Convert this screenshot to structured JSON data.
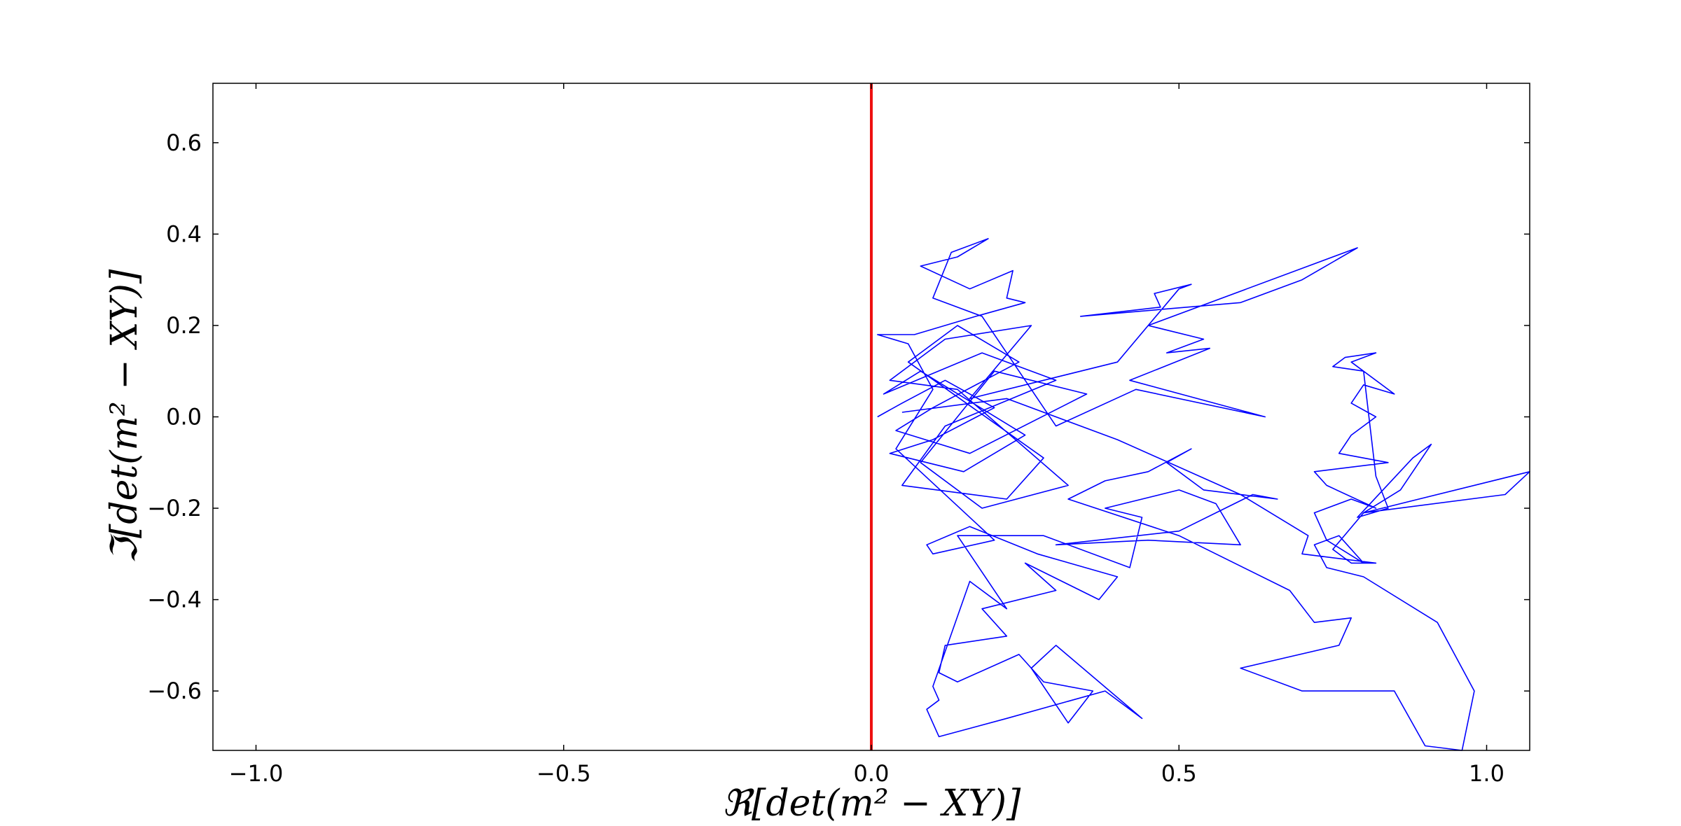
{
  "chart_data": {
    "type": "line",
    "xlabel": "ℜ[det(m² − XY)]",
    "ylabel": "ℑ[det(m² − XY)]",
    "xlim": [
      -1.07,
      1.07
    ],
    "ylim": [
      -0.73,
      0.73
    ],
    "xticks": [
      -1.0,
      -0.5,
      0.0,
      0.5,
      1.0
    ],
    "xtick_labels": [
      "−1.0",
      "−0.5",
      "0.0",
      "0.5",
      "1.0"
    ],
    "yticks": [
      -0.6,
      -0.4,
      -0.2,
      0.0,
      0.2,
      0.4,
      0.6
    ],
    "ytick_labels": [
      "−0.6",
      "−0.4",
      "−0.2",
      "0.0",
      "0.2",
      "0.4",
      "0.6"
    ],
    "grid": false,
    "reference_line": {
      "orientation": "vertical",
      "x": 0.0,
      "color": "#ee1111"
    },
    "series": [
      {
        "color": "#0000ff",
        "points": [
          [
            0.01,
            0.0
          ],
          [
            0.05,
            0.03
          ],
          [
            0.12,
            0.08
          ],
          [
            0.2,
            0.02
          ],
          [
            0.1,
            -0.05
          ],
          [
            0.03,
            -0.08
          ],
          [
            0.15,
            -0.12
          ],
          [
            0.25,
            -0.04
          ],
          [
            0.08,
            0.1
          ],
          [
            0.02,
            0.05
          ],
          [
            0.18,
            0.14
          ],
          [
            0.3,
            0.08
          ],
          [
            0.12,
            -0.02
          ],
          [
            0.05,
            -0.15
          ],
          [
            0.22,
            -0.18
          ],
          [
            0.28,
            -0.09
          ],
          [
            0.06,
            0.12
          ],
          [
            0.14,
            0.2
          ],
          [
            0.24,
            0.12
          ],
          [
            0.1,
            0.02
          ],
          [
            0.04,
            -0.03
          ],
          [
            0.16,
            -0.08
          ],
          [
            0.35,
            0.05
          ],
          [
            0.2,
            0.1
          ],
          [
            0.08,
            -0.1
          ],
          [
            0.18,
            -0.2
          ],
          [
            0.32,
            -0.15
          ],
          [
            0.14,
            0.06
          ],
          [
            0.03,
            0.08
          ],
          [
            0.12,
            0.17
          ],
          [
            0.26,
            0.2
          ],
          [
            0.16,
            0.04
          ],
          [
            0.4,
            0.12
          ],
          [
            0.5,
            0.28
          ],
          [
            0.52,
            0.29
          ],
          [
            0.46,
            0.27
          ],
          [
            0.47,
            0.24
          ],
          [
            0.34,
            0.22
          ],
          [
            0.6,
            0.25
          ],
          [
            0.7,
            0.3
          ],
          [
            0.79,
            0.37
          ],
          [
            0.45,
            0.2
          ],
          [
            0.54,
            0.17
          ],
          [
            0.48,
            0.14
          ],
          [
            0.55,
            0.15
          ],
          [
            0.42,
            0.08
          ],
          [
            0.64,
            0.0
          ],
          [
            0.43,
            0.06
          ],
          [
            0.3,
            -0.02
          ],
          [
            0.18,
            0.22
          ],
          [
            0.1,
            0.26
          ],
          [
            0.13,
            0.36
          ],
          [
            0.19,
            0.39
          ],
          [
            0.14,
            0.35
          ],
          [
            0.08,
            0.33
          ],
          [
            0.16,
            0.28
          ],
          [
            0.23,
            0.32
          ],
          [
            0.22,
            0.26
          ],
          [
            0.25,
            0.25
          ],
          [
            0.17,
            0.22
          ],
          [
            0.07,
            0.18
          ],
          [
            0.01,
            0.18
          ],
          [
            0.06,
            0.16
          ],
          [
            0.1,
            0.06
          ],
          [
            0.04,
            -0.07
          ],
          [
            0.2,
            -0.27
          ],
          [
            0.1,
            -0.3
          ],
          [
            0.09,
            -0.28
          ],
          [
            0.16,
            -0.24
          ],
          [
            0.27,
            -0.3
          ],
          [
            0.4,
            -0.35
          ],
          [
            0.37,
            -0.4
          ],
          [
            0.25,
            -0.32
          ],
          [
            0.3,
            -0.38
          ],
          [
            0.18,
            -0.42
          ],
          [
            0.22,
            -0.48
          ],
          [
            0.12,
            -0.5
          ],
          [
            0.11,
            -0.56
          ],
          [
            0.14,
            -0.58
          ],
          [
            0.24,
            -0.52
          ],
          [
            0.28,
            -0.58
          ],
          [
            0.36,
            -0.6
          ],
          [
            0.32,
            -0.67
          ],
          [
            0.26,
            -0.55
          ],
          [
            0.3,
            -0.5
          ],
          [
            0.44,
            -0.66
          ],
          [
            0.38,
            -0.6
          ],
          [
            0.22,
            -0.66
          ],
          [
            0.11,
            -0.7
          ],
          [
            0.09,
            -0.64
          ],
          [
            0.11,
            -0.62
          ],
          [
            0.1,
            -0.59
          ],
          [
            0.16,
            -0.36
          ],
          [
            0.22,
            -0.42
          ],
          [
            0.14,
            -0.26
          ],
          [
            0.28,
            -0.26
          ],
          [
            0.42,
            -0.33
          ],
          [
            0.44,
            -0.22
          ],
          [
            0.38,
            -0.2
          ],
          [
            0.5,
            -0.16
          ],
          [
            0.56,
            -0.19
          ],
          [
            0.6,
            -0.28
          ],
          [
            0.45,
            -0.27
          ],
          [
            0.3,
            -0.28
          ],
          [
            0.5,
            -0.25
          ],
          [
            0.62,
            -0.17
          ],
          [
            0.66,
            -0.18
          ],
          [
            0.54,
            -0.16
          ],
          [
            0.48,
            -0.1
          ],
          [
            0.52,
            -0.07
          ],
          [
            0.45,
            -0.12
          ],
          [
            0.38,
            -0.14
          ],
          [
            0.32,
            -0.18
          ],
          [
            0.5,
            -0.26
          ],
          [
            0.68,
            -0.38
          ],
          [
            0.72,
            -0.45
          ],
          [
            0.78,
            -0.44
          ],
          [
            0.76,
            -0.5
          ],
          [
            0.6,
            -0.55
          ],
          [
            0.7,
            -0.6
          ],
          [
            0.85,
            -0.6
          ],
          [
            0.9,
            -0.72
          ],
          [
            0.96,
            -0.73
          ],
          [
            0.98,
            -0.6
          ],
          [
            0.92,
            -0.45
          ],
          [
            0.8,
            -0.35
          ],
          [
            0.74,
            -0.33
          ],
          [
            0.72,
            -0.28
          ],
          [
            0.76,
            -0.26
          ],
          [
            0.8,
            -0.32
          ],
          [
            0.74,
            -0.27
          ],
          [
            0.72,
            -0.21
          ],
          [
            0.78,
            -0.18
          ],
          [
            0.82,
            -0.2
          ],
          [
            0.74,
            -0.15
          ],
          [
            0.72,
            -0.12
          ],
          [
            0.84,
            -0.1
          ],
          [
            0.76,
            -0.08
          ],
          [
            0.78,
            -0.04
          ],
          [
            0.82,
            0.0
          ],
          [
            0.78,
            0.03
          ],
          [
            0.8,
            0.07
          ],
          [
            0.85,
            0.05
          ],
          [
            0.78,
            0.12
          ],
          [
            0.82,
            0.14
          ],
          [
            0.77,
            0.13
          ],
          [
            0.75,
            0.11
          ],
          [
            0.8,
            0.1
          ],
          [
            0.82,
            -0.13
          ],
          [
            0.84,
            -0.2
          ],
          [
            0.79,
            -0.22
          ],
          [
            0.88,
            -0.09
          ],
          [
            0.91,
            -0.06
          ],
          [
            0.86,
            -0.16
          ],
          [
            0.8,
            -0.21
          ],
          [
            1.03,
            -0.17
          ],
          [
            1.07,
            -0.12
          ],
          [
            0.8,
            -0.21
          ],
          [
            0.75,
            -0.29
          ],
          [
            0.78,
            -0.32
          ],
          [
            0.82,
            -0.32
          ],
          [
            0.7,
            -0.3
          ],
          [
            0.71,
            -0.26
          ],
          [
            0.6,
            -0.17
          ],
          [
            0.4,
            -0.05
          ],
          [
            0.22,
            0.04
          ],
          [
            0.05,
            0.01
          ]
        ]
      }
    ]
  }
}
